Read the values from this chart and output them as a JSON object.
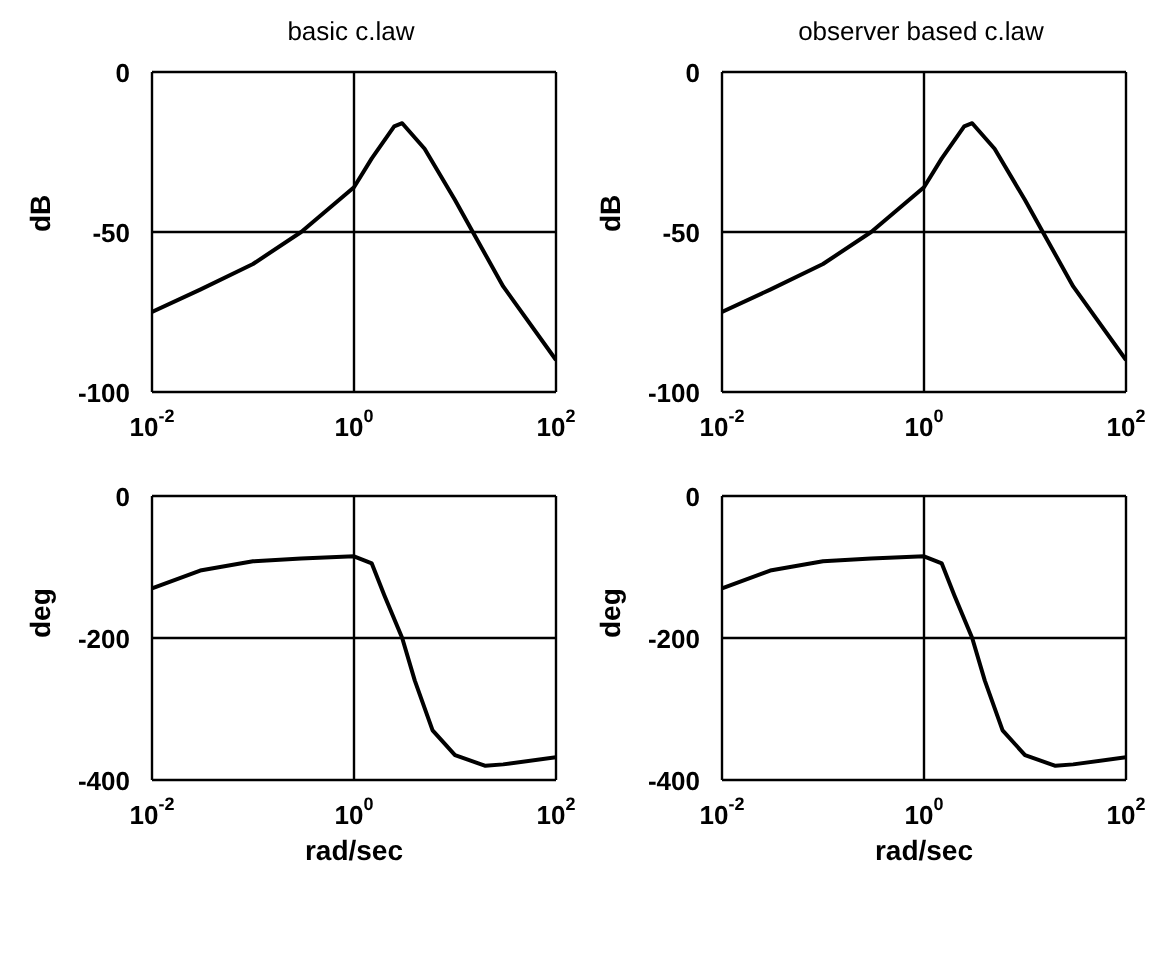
{
  "chart_data": [
    {
      "type": "line",
      "title": "basic c.law",
      "ylabel": "dB",
      "log": "x",
      "grid": true,
      "marker": "none",
      "line_style": "solid",
      "color": "#000000",
      "x": [
        0.01,
        0.03,
        0.1,
        0.3,
        1,
        1.5,
        2.5,
        3,
        5,
        10,
        15,
        30,
        100
      ],
      "values": [
        -75,
        -68,
        -60,
        -50,
        -36,
        -27,
        -17,
        -16,
        -24,
        -40,
        -50,
        -67,
        -90
      ],
      "xlim": [
        0.01,
        100
      ],
      "xticks": [
        {
          "value": 0.01,
          "label": "10$^{-2}$"
        },
        {
          "value": 1,
          "label": "10$^{0}$"
        },
        {
          "value": 100,
          "label": "10$^{2}$"
        }
      ],
      "ylim": [
        -100,
        0
      ],
      "yticks": [
        -100,
        -50,
        0
      ]
    },
    {
      "type": "line",
      "title": "observer based c.law",
      "ylabel": "dB",
      "log": "x",
      "grid": true,
      "marker": "none",
      "line_style": "solid",
      "color": "#000000",
      "x": [
        0.01,
        0.03,
        0.1,
        0.3,
        1,
        1.5,
        2.5,
        3,
        5,
        10,
        15,
        30,
        100
      ],
      "values": [
        -75,
        -68,
        -60,
        -50,
        -36,
        -27,
        -17,
        -16,
        -24,
        -40,
        -50,
        -67,
        -90
      ],
      "xlim": [
        0.01,
        100
      ],
      "xticks": [
        {
          "value": 0.01,
          "label": "10$^{-2}$"
        },
        {
          "value": 1,
          "label": "10$^{0}$"
        },
        {
          "value": 100,
          "label": "10$^{2}$"
        }
      ],
      "ylim": [
        -100,
        0
      ],
      "yticks": [
        -100,
        -50,
        0
      ]
    },
    {
      "type": "line",
      "xlabel": "rad/sec",
      "ylabel": "deg",
      "log": "x",
      "grid": true,
      "marker": "none",
      "line_style": "solid",
      "color": "#000000",
      "x": [
        0.01,
        0.03,
        0.1,
        0.3,
        1,
        1.5,
        2,
        3,
        4,
        6,
        10,
        20,
        30,
        100
      ],
      "values": [
        -130,
        -105,
        -92,
        -88,
        -85,
        -95,
        -140,
        -200,
        -260,
        -330,
        -365,
        -380,
        -378,
        -368
      ],
      "xlim": [
        0.01,
        100
      ],
      "xticks": [
        {
          "value": 0.01,
          "label": "10$^{-2}$"
        },
        {
          "value": 1,
          "label": "10$^{0}$"
        },
        {
          "value": 100,
          "label": "10$^{2}$"
        }
      ],
      "ylim": [
        -400,
        0
      ],
      "yticks": [
        -400,
        -200,
        0
      ]
    },
    {
      "type": "line",
      "xlabel": "rad/sec",
      "ylabel": "deg",
      "log": "x",
      "grid": true,
      "marker": "none",
      "line_style": "solid",
      "color": "#000000",
      "x": [
        0.01,
        0.03,
        0.1,
        0.3,
        1,
        1.5,
        2,
        3,
        4,
        6,
        10,
        20,
        30,
        100
      ],
      "values": [
        -130,
        -105,
        -92,
        -88,
        -85,
        -95,
        -140,
        -200,
        -260,
        -330,
        -365,
        -380,
        -378,
        -368
      ],
      "xlim": [
        0.01,
        100
      ],
      "xticks": [
        {
          "value": 0.01,
          "label": "10$^{-2}$"
        },
        {
          "value": 1,
          "label": "10$^{0}$"
        },
        {
          "value": 100,
          "label": "10$^{2}$"
        }
      ],
      "ylim": [
        -400,
        0
      ],
      "yticks": [
        -400,
        -200,
        0
      ]
    }
  ]
}
